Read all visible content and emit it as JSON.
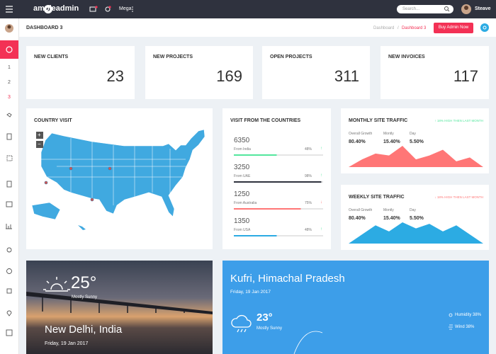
{
  "topbar": {
    "brand": "ampleadmin",
    "menu": "Mega",
    "search_placeholder": "Search...",
    "user": "Steave"
  },
  "sidebar": {
    "items": [
      "1",
      "2",
      "3"
    ]
  },
  "breadcrumb": {
    "title": "DASHBOARD 3",
    "path": [
      "Dashboard",
      "Dashboard 3"
    ],
    "separator": "/",
    "button": "Buy Admin Now"
  },
  "stats": [
    {
      "label": "NEW CLIENTS",
      "value": "23",
      "color": "#2cabe3"
    },
    {
      "label": "NEW PROJECTS",
      "value": "169",
      "color": "#707cd2"
    },
    {
      "label": "OPEN PROJECTS",
      "value": "311",
      "color": "#ff7676"
    },
    {
      "label": "NEW INVOICES",
      "value": "117",
      "color": "#53e69d"
    }
  ],
  "country_visit": {
    "title": "COUNTRY VISIT",
    "zoom": [
      "+",
      "−"
    ]
  },
  "visits": {
    "title": "VISIT FROM THE COUNTRIES",
    "rows": [
      {
        "count": "6350",
        "from": "From India",
        "percent": 48,
        "percent_label": "48%",
        "trend": "↑",
        "color": "#53e69d"
      },
      {
        "count": "3250",
        "from": "From UAE",
        "percent": 98,
        "percent_label": "98%",
        "trend": "↑",
        "color": "#2f323e"
      },
      {
        "count": "1250",
        "from": "From Australia",
        "percent": 75,
        "percent_label": "75%",
        "trend": "↓",
        "color": "#ff7676"
      },
      {
        "count": "1350",
        "from": "From USA",
        "percent": 48,
        "percent_label": "48%",
        "trend": "↑",
        "color": "#2cabe3"
      }
    ]
  },
  "monthly": {
    "title": "MONTHLY SITE TRAFFIC",
    "note": "↑ 18% HIGH THEN LAST MONTH",
    "note_color": "#53e69d",
    "metrics": [
      {
        "label": "Overall Growth",
        "value": "80.40%"
      },
      {
        "label": "Montly",
        "value": "15.40%"
      },
      {
        "label": "Day",
        "value": "5.50%"
      }
    ],
    "values": [
      0,
      2,
      3.5,
      3,
      5.5,
      2,
      3,
      4.5,
      1.5,
      2.5,
      0
    ],
    "color": "#ff7676"
  },
  "weekly": {
    "title": "WEEKLY SITE TRAFFIC",
    "note": "↓ 18% HIGH THEN LAST MONTH",
    "note_color": "#ff7676",
    "metrics": [
      {
        "label": "Overall Growth",
        "value": "80.40%"
      },
      {
        "label": "Montly",
        "value": "15.40%"
      },
      {
        "label": "Day",
        "value": "5.50%"
      }
    ],
    "values": [
      0,
      3,
      6,
      4,
      7,
      5,
      6.5,
      4,
      6,
      3,
      0
    ],
    "color": "#2cabe3"
  },
  "weather_left": {
    "temp": "25°",
    "condition": "Mostly Sunny",
    "city": "New Delhi, India",
    "date": "Friday, 19 Jan 2017"
  },
  "weather_right": {
    "city": "Kufri, Himachal Pradesh",
    "date": "Friday, 19 Jan 2017",
    "temp": "23°",
    "condition": "Mostly Sunny",
    "humidity": "Humidity 38%",
    "wind": "Wind 38%"
  }
}
